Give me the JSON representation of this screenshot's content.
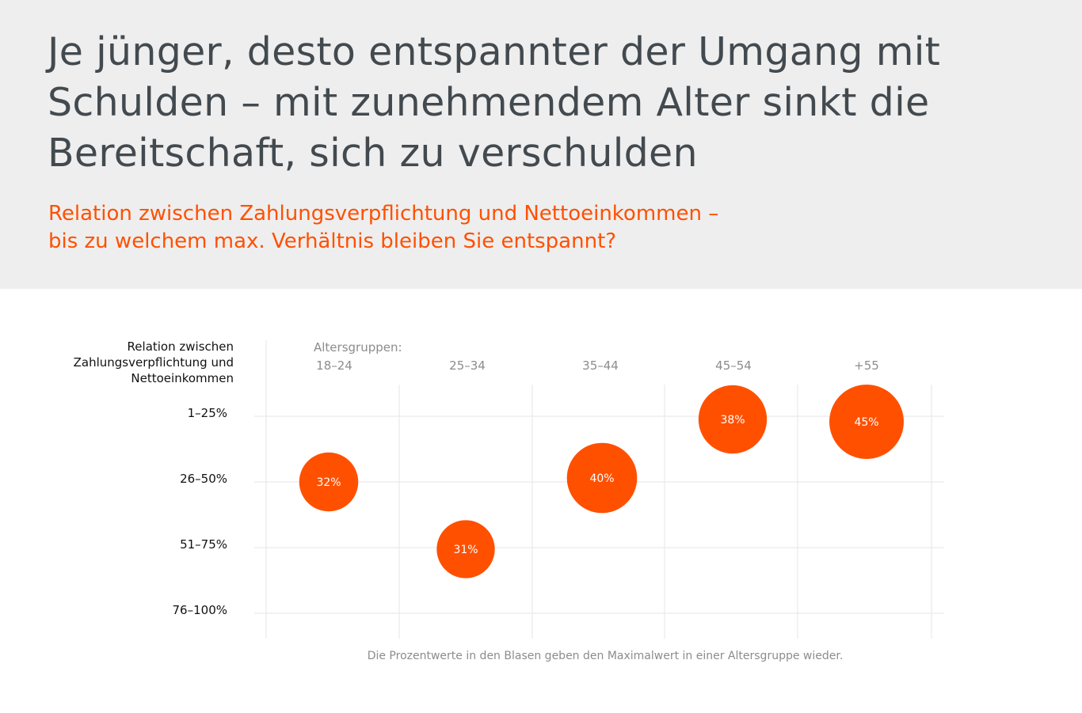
{
  "header": {
    "title": "Je jünger, desto entspannter der Umgang mit Schulden – mit zunehmendem Alter sinkt die Bereitschaft, sich zu verschulden",
    "subtitle_line1": "Relation zwischen Zahlungsverpflichtung und Nettoeinkommen –",
    "subtitle_line2": "bis zu welchem max. Verhältnis bleiben Sie entspannt?"
  },
  "footnote": "Die Prozentwerte in den Blasen geben den Maximalwert in einer Altersgruppe wieder.",
  "colors": {
    "accent": "#ff5000",
    "header_bg": "#eeeeee",
    "title": "#434a4f",
    "grid": "#e6e6e6",
    "muted_text": "#8c8c8c"
  },
  "chart_data": {
    "type": "scatter",
    "xlabel": "Altersgruppen:",
    "ylabel": "Relation zwischen Zahlungsverpflichtung und Nettoeinkommen",
    "categories": [
      "18–24",
      "25–34",
      "35–44",
      "45–54",
      "+55"
    ],
    "y_categories": [
      "1–25%",
      "26–50%",
      "51–75%",
      "76–100%"
    ],
    "grid": true,
    "points": [
      {
        "x": "18–24",
        "y": "26–50%",
        "value": 32,
        "label": "32%"
      },
      {
        "x": "25–34",
        "y": "51–75%",
        "value": 31,
        "label": "31%"
      },
      {
        "x": "35–44",
        "y": "26–50%",
        "value": 40,
        "label": "40%"
      },
      {
        "x": "45–54",
        "y": "1–25%",
        "value": 38,
        "label": "38%"
      },
      {
        "x": "+55",
        "y": "1–25%",
        "value": 45,
        "label": "45%"
      }
    ]
  }
}
